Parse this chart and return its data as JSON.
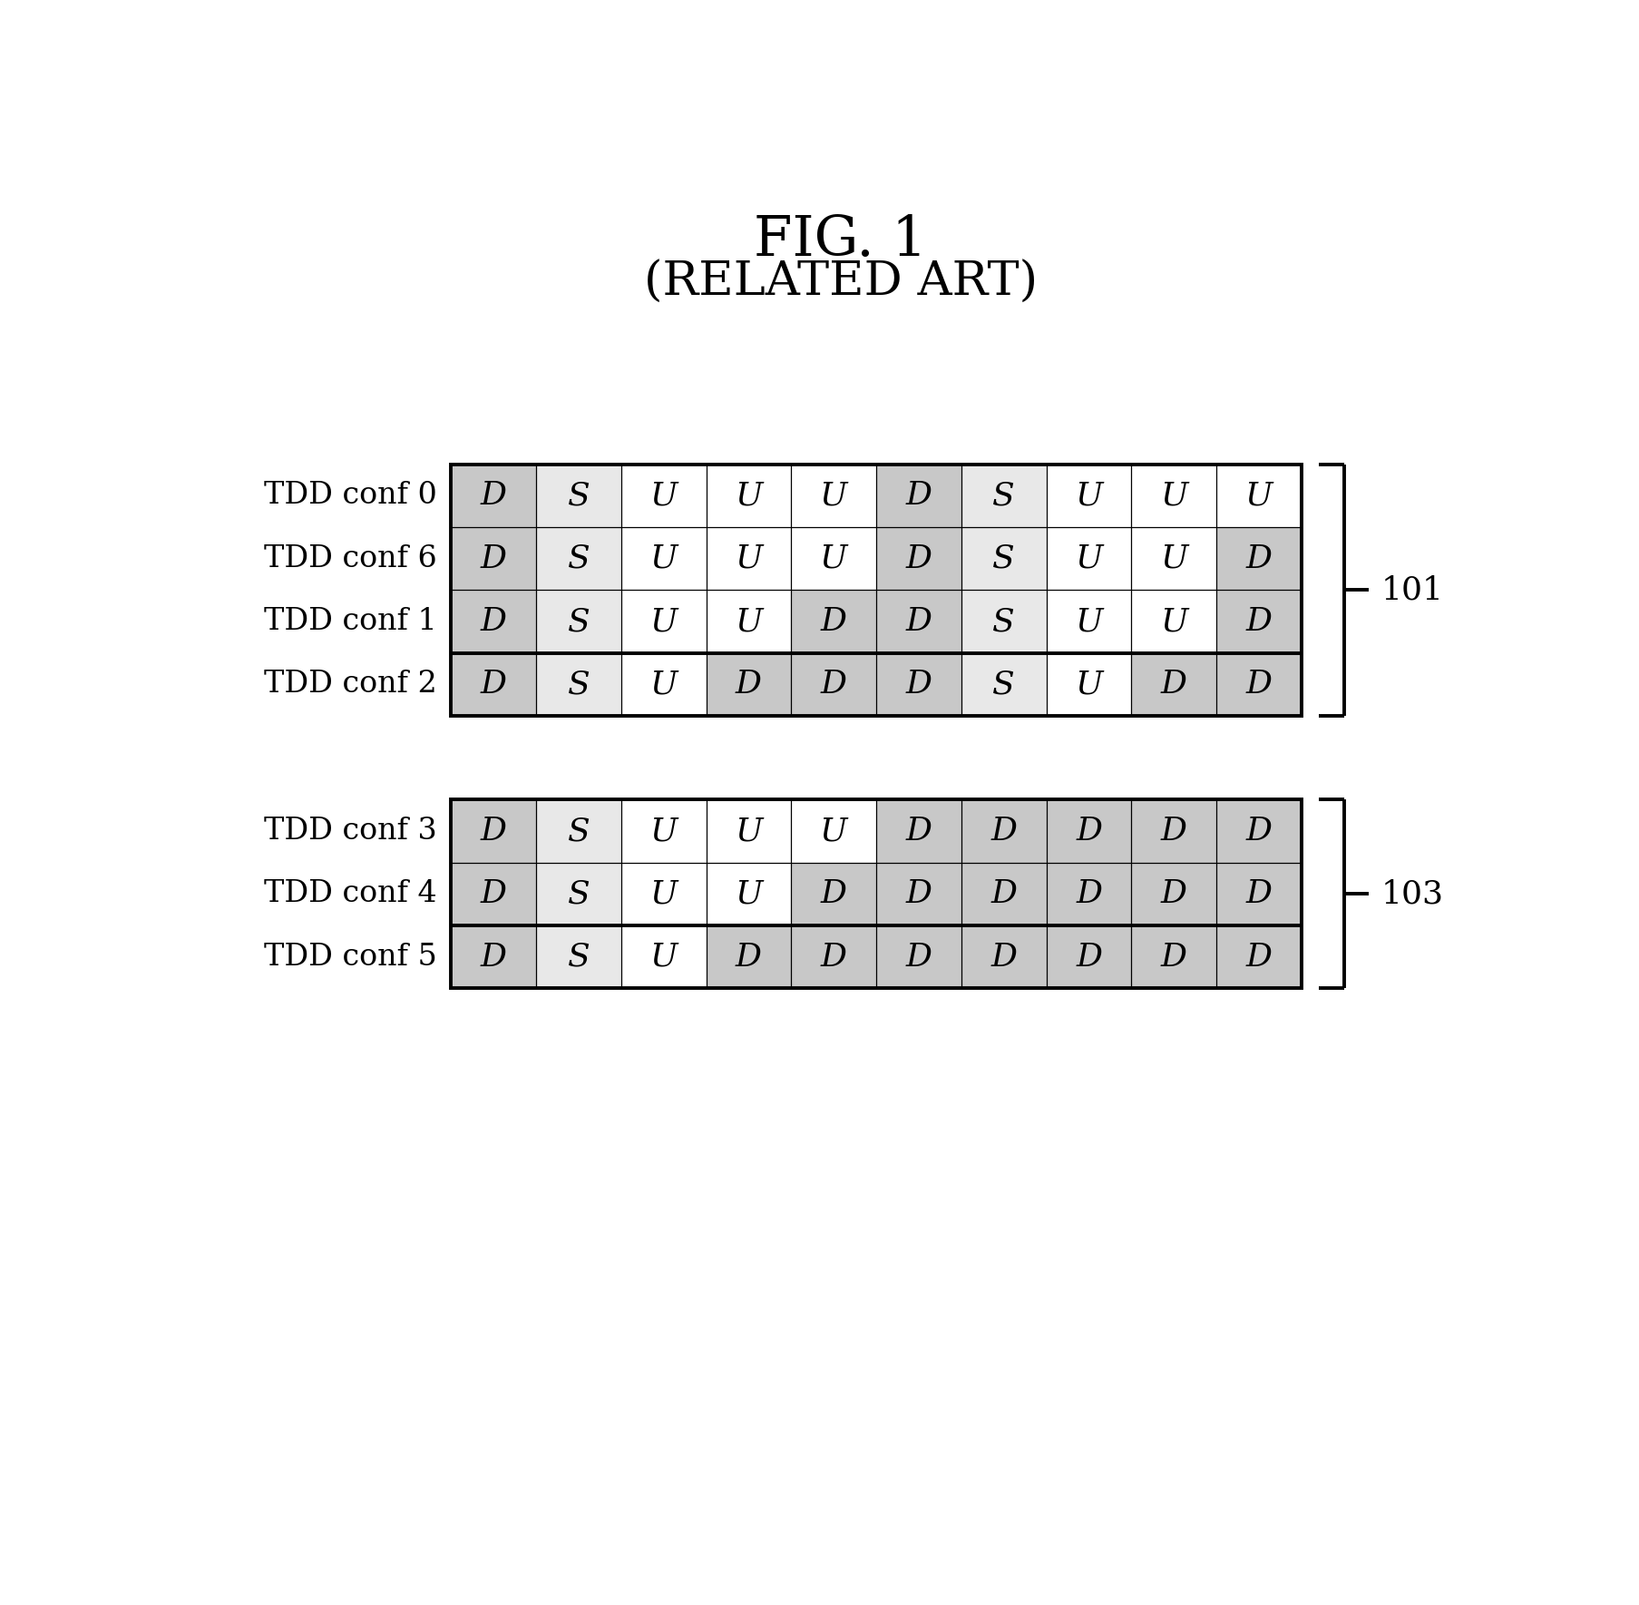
{
  "title_line1": "FIG. 1",
  "title_line2": "(RELATED ART)",
  "group1_label": "101",
  "group2_label": "103",
  "row_labels": [
    "TDD conf 0",
    "TDD conf 6",
    "TDD conf 1",
    "TDD conf 2",
    "TDD conf 3",
    "TDD conf 4",
    "TDD conf 5"
  ],
  "grid_data": [
    [
      "D",
      "S",
      "U",
      "U",
      "U",
      "D",
      "S",
      "U",
      "U",
      "U"
    ],
    [
      "D",
      "S",
      "U",
      "U",
      "U",
      "D",
      "S",
      "U",
      "U",
      "D"
    ],
    [
      "D",
      "S",
      "U",
      "U",
      "D",
      "D",
      "S",
      "U",
      "U",
      "D"
    ],
    [
      "D",
      "S",
      "U",
      "D",
      "D",
      "D",
      "S",
      "U",
      "D",
      "D"
    ],
    [
      "D",
      "S",
      "U",
      "U",
      "U",
      "D",
      "D",
      "D",
      "D",
      "D"
    ],
    [
      "D",
      "S",
      "U",
      "U",
      "D",
      "D",
      "D",
      "D",
      "D",
      "D"
    ],
    [
      "D",
      "S",
      "U",
      "D",
      "D",
      "D",
      "D",
      "D",
      "D",
      "D"
    ]
  ],
  "D_color": "#c8c8c8",
  "S_color": "#e8e8e8",
  "U_color": "#ffffff",
  "background_color": "#ffffff",
  "group1_rows": [
    0,
    1,
    2,
    3
  ],
  "group2_rows": [
    4,
    5,
    6
  ],
  "thick_sep_group1_after_row": 2,
  "thick_sep_group2_after_row": 1
}
